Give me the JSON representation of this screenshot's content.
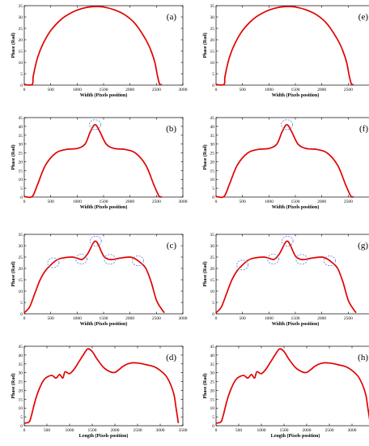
{
  "chart_data": [
    {
      "type": "line",
      "panel_label": "(a)",
      "xlabel": "Width (Pixels position)",
      "ylabel": "Phase (Rad)",
      "xlim": [
        0,
        3000
      ],
      "ylim": [
        0,
        35
      ],
      "xticks": [
        0,
        500,
        1000,
        1500,
        2000,
        2500,
        3000
      ],
      "yticks": [
        0,
        5,
        10,
        15,
        20,
        25,
        30,
        35
      ],
      "series": [
        {
          "color": "#e30000",
          "x": [
            0,
            150,
            170,
            250,
            350,
            500,
            700,
            900,
            1100,
            1300,
            1500,
            1700,
            1900,
            2100,
            2300,
            2400,
            2470,
            2520,
            2560,
            2600
          ],
          "y": [
            0.3,
            0.3,
            4,
            12,
            18,
            24,
            29,
            32,
            33.8,
            34.6,
            34.4,
            33.2,
            31,
            27,
            20,
            15,
            10,
            4,
            0.5,
            0.3
          ]
        }
      ],
      "circled_x": []
    },
    {
      "type": "line",
      "panel_label": "(e)",
      "xlabel": "Width (Pixels position)",
      "ylabel": "Phase (Rad)",
      "xlim": [
        0,
        3000
      ],
      "ylim": [
        0,
        35
      ],
      "xticks": [
        0,
        500,
        1000,
        1500,
        2000,
        2500,
        3000
      ],
      "yticks": [
        0,
        5,
        10,
        15,
        20,
        25,
        30,
        35
      ],
      "series": [
        {
          "color": "#e30000",
          "x": [
            0,
            150,
            170,
            250,
            350,
            500,
            700,
            900,
            1100,
            1300,
            1500,
            1700,
            1900,
            2100,
            2300,
            2400,
            2470,
            2520,
            2560,
            2600
          ],
          "y": [
            0.3,
            0.3,
            4,
            12,
            18,
            24,
            29,
            32,
            33.8,
            34.6,
            34.4,
            33.2,
            31,
            27,
            20,
            15,
            10,
            4,
            0.5,
            0.3
          ]
        }
      ],
      "circled_x": []
    },
    {
      "type": "line",
      "panel_label": "(b)",
      "xlabel": "Width (Pixels position)",
      "ylabel": "Phase (Rad)",
      "xlim": [
        0,
        3000
      ],
      "ylim": [
        0,
        45
      ],
      "xticks": [
        0,
        500,
        1000,
        1500,
        2000,
        2500,
        3000
      ],
      "yticks": [
        0,
        5,
        10,
        15,
        20,
        25,
        30,
        35,
        40,
        45
      ],
      "series": [
        {
          "color": "#e30000",
          "x": [
            0,
            150,
            250,
            400,
            600,
            800,
            1000,
            1150,
            1250,
            1340,
            1430,
            1550,
            1700,
            1900,
            2100,
            2300,
            2450,
            2550,
            2600
          ],
          "y": [
            0.3,
            0.3,
            7,
            18,
            25,
            27,
            27.5,
            30,
            37,
            41,
            37,
            30,
            27.5,
            27,
            25,
            18,
            7,
            0.5,
            0.3
          ]
        }
      ],
      "circled_x": [
        1340
      ]
    },
    {
      "type": "line",
      "panel_label": "(f)",
      "xlabel": "Width (Pixels position)",
      "ylabel": "Phase (Rad)",
      "xlim": [
        0,
        3000
      ],
      "ylim": [
        0,
        45
      ],
      "xticks": [
        0,
        500,
        1000,
        1500,
        2000,
        2500,
        3000
      ],
      "yticks": [
        0,
        5,
        10,
        15,
        20,
        25,
        30,
        35,
        40,
        45
      ],
      "series": [
        {
          "color": "#e30000",
          "x": [
            0,
            150,
            250,
            400,
            600,
            800,
            1000,
            1150,
            1250,
            1340,
            1430,
            1550,
            1700,
            1900,
            2100,
            2300,
            2450,
            2550,
            2600
          ],
          "y": [
            0.3,
            0.3,
            7,
            18,
            25,
            27,
            27.5,
            30,
            37,
            41,
            37,
            30,
            27.5,
            27,
            25,
            18,
            7,
            0.5,
            0.3
          ]
        }
      ],
      "circled_x": [
        1340
      ]
    },
    {
      "type": "line",
      "panel_label": "(c)",
      "xlabel": "Width (Pixels position)",
      "ylabel": "Phase (Rad)",
      "xlim": [
        0,
        3000
      ],
      "ylim": [
        0,
        35
      ],
      "xticks": [
        0,
        500,
        1000,
        1500,
        2000,
        2500,
        3000
      ],
      "yticks": [
        0,
        5,
        10,
        15,
        20,
        25,
        30,
        35
      ],
      "series": [
        {
          "color": "#e30000",
          "x": [
            0,
            100,
            200,
            300,
            400,
            500,
            600,
            700,
            900,
            1000,
            1100,
            1200,
            1300,
            1350,
            1400,
            1500,
            1600,
            1700,
            1800,
            2000,
            2100,
            2200,
            2300,
            2400,
            2500,
            2600,
            2650
          ],
          "y": [
            0.5,
            3,
            9,
            15,
            19,
            21.5,
            23.5,
            24.5,
            25,
            24.5,
            24,
            26.5,
            31,
            32,
            30.5,
            25.5,
            24,
            24,
            24.5,
            25,
            24.2,
            22.5,
            20,
            14,
            6,
            2,
            0.5
          ]
        }
      ],
      "circled_x": [
        550,
        1080,
        1350,
        1620,
        2150
      ]
    },
    {
      "type": "line",
      "panel_label": "(g)",
      "xlabel": "Width (Pixels position)",
      "ylabel": "Phase (Rad)",
      "xlim": [
        0,
        3000
      ],
      "ylim": [
        0,
        35
      ],
      "xticks": [
        0,
        500,
        1000,
        1500,
        2000,
        2500,
        3000
      ],
      "yticks": [
        0,
        5,
        10,
        15,
        20,
        25,
        30,
        35
      ],
      "series": [
        {
          "color": "#e30000",
          "x": [
            0,
            100,
            200,
            300,
            400,
            500,
            600,
            700,
            900,
            1000,
            1100,
            1200,
            1300,
            1350,
            1400,
            1500,
            1600,
            1700,
            1800,
            2000,
            2100,
            2200,
            2300,
            2400,
            2500,
            2600,
            2650
          ],
          "y": [
            0.5,
            3,
            9,
            15,
            19,
            21.5,
            23.5,
            24.5,
            25,
            24.5,
            24,
            26.5,
            31,
            32,
            30.5,
            25.5,
            24,
            24,
            24.5,
            25,
            24.2,
            22.5,
            20,
            14,
            6,
            2,
            0.5
          ]
        }
      ],
      "circled_x": [
        500,
        1080,
        1350,
        1620,
        2150
      ]
    },
    {
      "type": "line",
      "panel_label": "(d)",
      "xlabel": "Length (Pixels position)",
      "ylabel": "Phase (Rad)",
      "xlim": [
        0,
        3500
      ],
      "ylim": [
        0,
        45
      ],
      "xticks": [
        0,
        500,
        1000,
        1500,
        2000,
        2500,
        3000,
        3500
      ],
      "yticks": [
        0,
        5,
        10,
        15,
        20,
        25,
        30,
        35,
        40,
        45
      ],
      "series": [
        {
          "color": "#e30000",
          "x": [
            0,
            100,
            150,
            250,
            350,
            450,
            600,
            700,
            780,
            850,
            900,
            1000,
            1100,
            1200,
            1300,
            1400,
            1500,
            1600,
            1750,
            1900,
            2000,
            2100,
            2200,
            2350,
            2500,
            2700,
            2900,
            3100,
            3200,
            3300,
            3350,
            3400
          ],
          "y": [
            1.5,
            2,
            5,
            15,
            22,
            26.5,
            28.5,
            27,
            29,
            27,
            30.5,
            29.5,
            32,
            36,
            40,
            43.5,
            42,
            38,
            33,
            30.5,
            30.2,
            32,
            34,
            35.5,
            35.5,
            34.5,
            33,
            29,
            25,
            18,
            10,
            1.5
          ]
        }
      ],
      "circled_x": []
    },
    {
      "type": "line",
      "panel_label": "(h)",
      "xlabel": "Length (Pixels position)",
      "ylabel": "Phase (Rad)",
      "xlim": [
        0,
        3500
      ],
      "ylim": [
        0,
        45
      ],
      "xticks": [
        0,
        500,
        1000,
        1500,
        2000,
        2500,
        3000,
        3500
      ],
      "yticks": [
        0,
        5,
        10,
        15,
        20,
        25,
        30,
        35,
        40,
        45
      ],
      "series": [
        {
          "color": "#e30000",
          "x": [
            0,
            100,
            150,
            250,
            350,
            450,
            600,
            700,
            780,
            850,
            900,
            1000,
            1100,
            1200,
            1300,
            1400,
            1500,
            1600,
            1750,
            1900,
            2000,
            2100,
            2200,
            2350,
            2500,
            2700,
            2900,
            3100,
            3200,
            3300,
            3350,
            3400
          ],
          "y": [
            1.5,
            2,
            5,
            15,
            22,
            26.5,
            28.5,
            27,
            29,
            27,
            30.5,
            29.5,
            32,
            36,
            40,
            43.5,
            42,
            38,
            33,
            30.5,
            30.2,
            32,
            34,
            35.5,
            35.5,
            34.5,
            33,
            29,
            25,
            18,
            10,
            1.5
          ]
        }
      ],
      "circled_x": []
    }
  ]
}
